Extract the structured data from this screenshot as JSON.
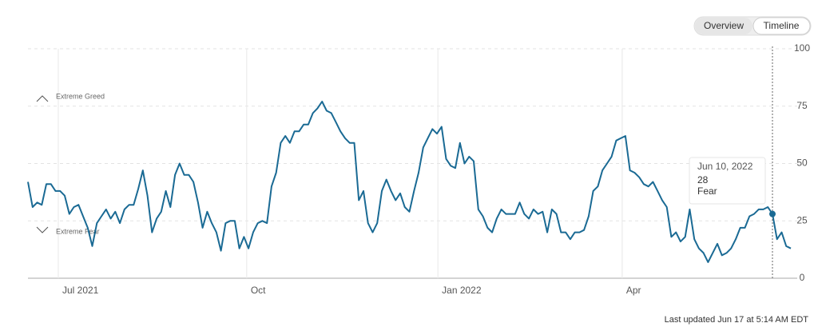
{
  "chart_data": {
    "type": "line",
    "toggle": [
      "Overview",
      "Timeline"
    ],
    "annotations": [
      "Extreme Greed",
      "Extreme Fear"
    ],
    "color": "#1a6a94",
    "values": [
      42,
      31,
      33,
      32,
      41,
      41,
      38,
      38,
      36,
      28,
      31,
      32,
      27,
      22,
      14,
      24,
      27,
      30,
      26,
      29,
      24,
      30,
      32,
      32,
      39,
      47,
      36,
      20,
      26,
      29,
      38,
      31,
      45,
      50,
      45,
      45,
      42,
      33,
      22,
      29,
      24,
      20,
      12,
      24,
      25,
      25,
      13,
      18,
      13,
      20,
      24,
      25,
      24,
      40,
      46,
      59,
      62,
      59,
      64,
      64,
      67,
      67,
      72,
      74,
      77,
      73,
      72,
      68,
      64,
      61,
      59,
      59,
      34,
      38,
      24,
      20,
      24,
      38,
      43,
      38,
      34,
      37,
      31,
      29,
      38,
      46,
      57,
      61,
      65,
      63,
      66,
      52,
      49,
      48,
      59,
      50,
      53,
      51,
      30,
      27,
      22,
      20,
      26,
      30,
      28,
      28,
      28,
      33,
      28,
      26,
      30,
      28,
      29,
      20,
      30,
      28,
      20,
      20,
      17,
      20,
      20,
      21,
      27,
      38,
      40,
      47,
      50,
      53,
      60,
      61,
      62,
      47,
      46,
      44,
      41,
      40,
      42,
      38,
      34,
      31,
      18,
      20,
      16,
      18,
      30,
      17,
      13,
      11,
      7,
      11,
      15,
      10,
      11,
      13,
      17,
      22,
      22,
      27,
      28,
      30,
      30,
      31,
      28,
      17,
      20,
      14,
      13
    ],
    "xlim": [
      0,
      166
    ],
    "xticks": [
      {
        "value": 6.6,
        "label": "Jul 2021"
      },
      {
        "value": 47.6,
        "label": "Oct"
      },
      {
        "value": 89.2,
        "label": "Jan 2022"
      },
      {
        "value": 129.3,
        "label": "Apr"
      }
    ],
    "ylim": [
      0,
      100
    ],
    "yticks": [
      0,
      25,
      50,
      75,
      100
    ],
    "grid": true,
    "tooltip": {
      "date": "Jun 10, 2022",
      "value": 28,
      "rating": "Fear"
    },
    "footer": "Last updated Jun 17 at 5:14 AM EDT"
  }
}
